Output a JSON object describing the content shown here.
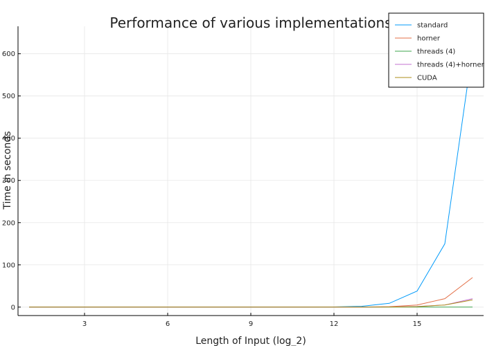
{
  "chart_data": {
    "type": "line",
    "title": "Performance of various implementations",
    "xlabel": "Length of Input (log_2)",
    "ylabel": "Time in seconds",
    "xlim": [
      0.6,
      17.4
    ],
    "ylim": [
      -20,
      665
    ],
    "xticks": [
      3,
      6,
      9,
      12,
      15
    ],
    "yticks": [
      0,
      100,
      200,
      300,
      400,
      500,
      600
    ],
    "grid": true,
    "legend_position": "top-right",
    "x": [
      1,
      2,
      3,
      4,
      5,
      6,
      7,
      8,
      9,
      10,
      11,
      12,
      13,
      14,
      15,
      16,
      17
    ],
    "series": [
      {
        "name": "standard",
        "color": "#009AFA",
        "values": [
          0,
          0,
          0,
          0,
          0,
          0,
          0,
          0,
          0,
          0,
          0,
          0.5,
          2,
          9,
          38,
          150,
          610
        ]
      },
      {
        "name": "horner",
        "color": "#E36F47",
        "values": [
          0,
          0,
          0,
          0,
          0,
          0,
          0,
          0,
          0,
          0,
          0,
          0.1,
          0.3,
          1.2,
          5,
          20,
          70
        ]
      },
      {
        "name": "threads (4)",
        "color": "#3EA44E",
        "values": [
          0,
          0,
          0,
          0,
          0,
          0,
          0,
          0,
          0,
          0,
          0,
          0,
          0,
          0,
          0,
          0,
          0
        ]
      },
      {
        "name": "threads (4)+horner",
        "color": "#C371D2",
        "values": [
          0,
          0,
          0,
          0,
          0,
          0,
          0,
          0,
          0,
          0,
          0,
          0,
          0.1,
          0.5,
          1.5,
          5,
          20
        ]
      },
      {
        "name": "CUDA",
        "color": "#AC8E18",
        "values": [
          0,
          0,
          0,
          0,
          0,
          0,
          0,
          0,
          0,
          0,
          0,
          0,
          0.1,
          0.4,
          1.2,
          5,
          17
        ]
      }
    ]
  }
}
